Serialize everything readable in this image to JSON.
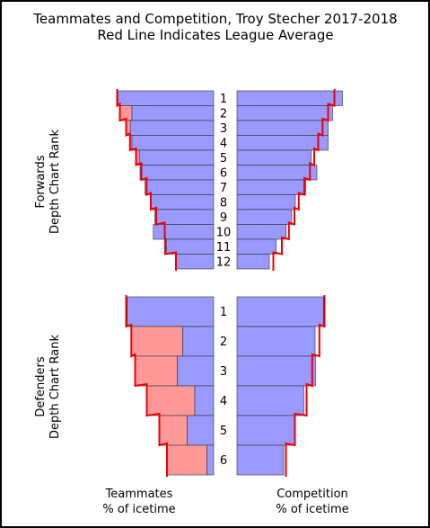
{
  "chart_data": {
    "type": "bar",
    "title": "Teammates and Competition, Troy Stecher 2017-2018",
    "subtitle": "Red Line Indicates League Average",
    "forwards_ylabel": [
      "Forwards",
      "Depth Chart Rank"
    ],
    "defenders_ylabel": [
      "Defenders",
      "Depth Chart Rank"
    ],
    "teammates_xlabel": [
      "Teammates",
      "% of icetime"
    ],
    "competition_xlabel": [
      "Competition",
      "% of icetime"
    ],
    "colors": {
      "bar": "#9999ff",
      "bar_excess": "#ff9999",
      "average": "#ee0000",
      "edge": "#333333"
    },
    "forwards": {
      "ranks": [
        "1",
        "2",
        "3",
        "4",
        "5",
        "6",
        "7",
        "8",
        "9",
        "10",
        "11",
        "12"
      ],
      "teammates": [
        0.426,
        0.364,
        0.371,
        0.364,
        0.331,
        0.328,
        0.306,
        0.281,
        0.262,
        0.269,
        0.211,
        0.168
      ],
      "teammates_avg": [
        0.43,
        0.418,
        0.39,
        0.373,
        0.346,
        0.322,
        0.299,
        0.28,
        0.256,
        0.218,
        0.216,
        0.168
      ],
      "competition": [
        0.47,
        0.426,
        0.406,
        0.406,
        0.331,
        0.356,
        0.306,
        0.26,
        0.244,
        0.219,
        0.175,
        0.144
      ],
      "competition_avg": [
        0.434,
        0.406,
        0.381,
        0.362,
        0.344,
        0.325,
        0.3,
        0.275,
        0.256,
        0.231,
        0.2,
        0.162
      ]
    },
    "defenders": {
      "ranks": [
        "1",
        "2",
        "3",
        "4",
        "5",
        "6"
      ],
      "teammates": [
        0.385,
        0.138,
        0.162,
        0.084,
        0.118,
        0.03
      ],
      "teammates_avg": [
        0.39,
        0.367,
        0.35,
        0.298,
        0.242,
        0.208
      ],
      "competition": [
        0.385,
        0.348,
        0.35,
        0.298,
        0.26,
        0.208
      ],
      "competition_avg": [
        0.39,
        0.367,
        0.335,
        0.31,
        0.258,
        0.218
      ]
    }
  }
}
